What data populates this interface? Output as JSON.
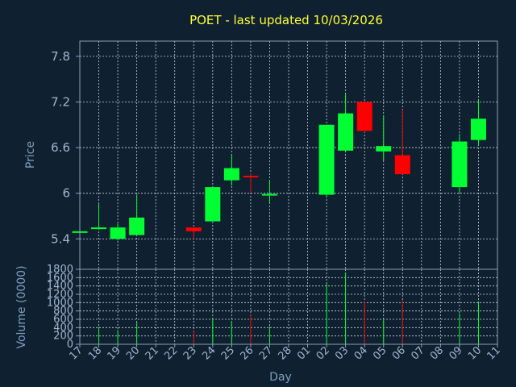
{
  "chart_data": {
    "type": "candlestick",
    "title": "POET - last updated 10/03/2026",
    "xlabel": "Day",
    "price_panel": {
      "ylabel": "Price",
      "ylim": [
        5.0,
        8.0
      ],
      "yticks": [
        5.4,
        6,
        6.6,
        7.2,
        7.8
      ],
      "ytick_labels": [
        "5.4",
        "6",
        "6.6",
        "7.2",
        "7.8"
      ]
    },
    "volume_panel": {
      "ylabel": "Volume (0000)",
      "ylim": [
        0,
        1800
      ],
      "yticks": [
        0,
        200,
        400,
        600,
        800,
        1000,
        1200,
        1400,
        1600,
        1800
      ],
      "ytick_labels": [
        "0",
        "200",
        "400",
        "600",
        "800",
        "1000",
        "1200",
        "1400",
        "1600",
        "1800"
      ]
    },
    "x_tick_labels": [
      "17",
      "18",
      "19",
      "20",
      "21",
      "22",
      "23",
      "24",
      "25",
      "26",
      "27",
      "28",
      "01",
      "02",
      "03",
      "04",
      "05",
      "06",
      "07",
      "08",
      "09",
      "10",
      "11"
    ],
    "grid": true,
    "up_color": "#00ff33",
    "down_color": "#ff0000",
    "candles": [
      {
        "day": "17",
        "open": 5.49,
        "high": 5.5,
        "low": 5.47,
        "close": 5.5,
        "volume": 0
      },
      {
        "day": "18",
        "open": 5.53,
        "high": 5.86,
        "low": 5.52,
        "close": 5.55,
        "volume": 420
      },
      {
        "day": "19",
        "open": 5.4,
        "high": 5.6,
        "low": 5.38,
        "close": 5.55,
        "volume": 340
      },
      {
        "day": "20",
        "open": 5.45,
        "high": 5.98,
        "low": 5.45,
        "close": 5.68,
        "volume": 530
      },
      {
        "day": "23",
        "open": 5.55,
        "high": 5.55,
        "low": 5.4,
        "close": 5.5,
        "volume": 320
      },
      {
        "day": "24",
        "open": 5.63,
        "high": 6.08,
        "low": 5.63,
        "close": 6.08,
        "volume": 620
      },
      {
        "day": "25",
        "open": 6.17,
        "high": 6.5,
        "low": 6.1,
        "close": 6.33,
        "volume": 560
      },
      {
        "day": "26",
        "open": 6.23,
        "high": 6.26,
        "low": 6.0,
        "close": 6.21,
        "volume": 700
      },
      {
        "day": "27",
        "open": 5.98,
        "high": 6.17,
        "low": 5.86,
        "close": 5.99,
        "volume": 430
      },
      {
        "day": "02",
        "open": 5.98,
        "high": 6.9,
        "low": 5.94,
        "close": 6.9,
        "volume": 1480
      },
      {
        "day": "03",
        "open": 6.56,
        "high": 7.3,
        "low": 6.55,
        "close": 7.05,
        "volume": 1720
      },
      {
        "day": "04",
        "open": 7.2,
        "high": 7.2,
        "low": 6.8,
        "close": 6.82,
        "volume": 1030
      },
      {
        "day": "05",
        "open": 6.55,
        "high": 7.02,
        "low": 6.43,
        "close": 6.62,
        "volume": 600
      },
      {
        "day": "06",
        "open": 6.5,
        "high": 7.1,
        "low": 6.25,
        "close": 6.25,
        "volume": 1060
      },
      {
        "day": "09",
        "open": 6.08,
        "high": 6.78,
        "low": 6.0,
        "close": 6.68,
        "volume": 740
      },
      {
        "day": "10",
        "open": 6.7,
        "high": 7.22,
        "low": 6.63,
        "close": 6.98,
        "volume": 1000
      }
    ]
  }
}
